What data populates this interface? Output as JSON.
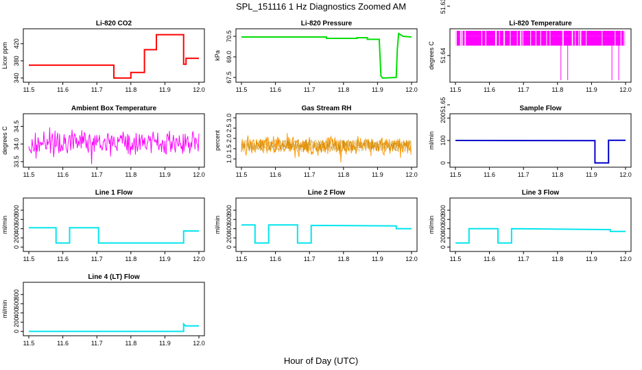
{
  "figure": {
    "title": "SPL_151116  1 Hz Diagnostics Zoomed AM",
    "xlabel": "Hour of Day (UTC)"
  },
  "chart_data": [
    {
      "id": "co2",
      "type": "line",
      "title": "Li-820 CO2",
      "ylabel": "Licor ppm",
      "color": "#ff0000",
      "xlim": [
        11.5,
        12.0
      ],
      "xticks": [
        "11.5",
        "11.6",
        "11.7",
        "11.8",
        "11.9",
        "12.0"
      ],
      "ylim": [
        335,
        450
      ],
      "yticks": [
        340,
        380,
        420
      ],
      "series": [
        {
          "x": 11.5,
          "y": 370
        },
        {
          "x": 11.75,
          "y": 370
        },
        {
          "x": 11.75,
          "y": 340
        },
        {
          "x": 11.8,
          "y": 340
        },
        {
          "x": 11.8,
          "y": 353
        },
        {
          "x": 11.84,
          "y": 353
        },
        {
          "x": 11.84,
          "y": 406
        },
        {
          "x": 11.875,
          "y": 406
        },
        {
          "x": 11.875,
          "y": 441
        },
        {
          "x": 11.955,
          "y": 441
        },
        {
          "x": 11.955,
          "y": 372
        },
        {
          "x": 11.962,
          "y": 372
        },
        {
          "x": 11.962,
          "y": 386
        },
        {
          "x": 12.0,
          "y": 386
        }
      ]
    },
    {
      "id": "pressure",
      "type": "line",
      "title": "Li-820 Pressure",
      "ylabel": "kPa",
      "color": "#00dd00",
      "xlim": [
        11.5,
        12.0
      ],
      "xticks": [
        "11.5",
        "11.6",
        "11.7",
        "11.8",
        "11.9",
        "12.0"
      ],
      "ylim": [
        67.3,
        70.9
      ],
      "yticks": [
        "67.5",
        "69.0",
        "70.5"
      ],
      "series": [
        {
          "x": 11.5,
          "y": 70.45
        },
        {
          "x": 11.75,
          "y": 70.45
        },
        {
          "x": 11.75,
          "y": 70.35
        },
        {
          "x": 11.84,
          "y": 70.35
        },
        {
          "x": 11.84,
          "y": 70.4
        },
        {
          "x": 11.87,
          "y": 70.4
        },
        {
          "x": 11.87,
          "y": 70.28
        },
        {
          "x": 11.905,
          "y": 70.28
        },
        {
          "x": 11.91,
          "y": 67.6
        },
        {
          "x": 11.915,
          "y": 67.45
        },
        {
          "x": 11.955,
          "y": 67.5
        },
        {
          "x": 11.958,
          "y": 69.5
        },
        {
          "x": 11.962,
          "y": 70.7
        },
        {
          "x": 11.975,
          "y": 70.5
        },
        {
          "x": 12.0,
          "y": 70.45
        }
      ]
    },
    {
      "id": "licor_temp",
      "type": "band",
      "title": "Li-820 Temperature",
      "ylabel": "degrees C",
      "color": "#ff00ff",
      "xlim": [
        11.5,
        12.0
      ],
      "xticks": [
        "11.5",
        "11.6",
        "11.7",
        "11.8",
        "11.9",
        "12.0"
      ],
      "ylim": [
        51.645,
        51.635
      ],
      "yticks": [
        "51.65",
        "51.64",
        "51.63"
      ],
      "band": {
        "x0": 11.5,
        "x1": 12.0,
        "ylow": 51.638,
        "yhigh": 51.636
      },
      "spikes": [
        11.81,
        11.83,
        11.96,
        11.98
      ]
    },
    {
      "id": "ambient_temp",
      "type": "noise",
      "title": "Ambient Box Temperature",
      "ylabel": "degrees C",
      "color": "#ff00ff",
      "xlim": [
        11.5,
        12.0
      ],
      "xticks": [
        "11.5",
        "11.6",
        "11.7",
        "11.8",
        "11.9",
        "12.0"
      ],
      "ylim": [
        33.4,
        34.8
      ],
      "yticks": [
        "33.5",
        "34.0",
        "34.5"
      ],
      "mean": 34.05,
      "amp": 0.32
    },
    {
      "id": "rh",
      "type": "noise",
      "title": "Gas Stream RH",
      "ylabel": "percent",
      "color": "#ff9900",
      "xlim": [
        11.5,
        12.0
      ],
      "xticks": [
        "11.5",
        "11.6",
        "11.7",
        "11.8",
        "11.9",
        "12.0"
      ],
      "ylim": [
        0.7,
        3.1
      ],
      "yticks": [
        "1.0",
        "1.5",
        "2.0",
        "2.5",
        "3.0"
      ],
      "mean": 1.65,
      "amp": 0.45
    },
    {
      "id": "sample_flow",
      "type": "line",
      "title": "Sample Flow",
      "ylabel": "ml/min",
      "color": "#0000cc",
      "xlim": [
        11.5,
        12.0
      ],
      "xticks": [
        "11.5",
        "11.6",
        "11.7",
        "11.8",
        "11.9",
        "12.0"
      ],
      "ylim": [
        -10,
        210
      ],
      "yticks": [
        0,
        100,
        200
      ],
      "series": [
        {
          "x": 11.5,
          "y": 100
        },
        {
          "x": 11.91,
          "y": 99
        },
        {
          "x": 11.91,
          "y": 0
        },
        {
          "x": 11.95,
          "y": 0
        },
        {
          "x": 11.95,
          "y": 101
        },
        {
          "x": 12.0,
          "y": 101
        }
      ]
    },
    {
      "id": "line1",
      "type": "line",
      "title": "Line 1 Flow",
      "ylabel": "ml/min",
      "color": "#00e5ee",
      "xlim": [
        11.5,
        12.0
      ],
      "xticks": [
        "11.5",
        "11.6",
        "11.7",
        "11.8",
        "11.9",
        "12.0"
      ],
      "ylim": [
        -50,
        1020
      ],
      "yticks": [
        0,
        200,
        400,
        600,
        800
      ],
      "series": [
        {
          "x": 11.5,
          "y": 420
        },
        {
          "x": 11.58,
          "y": 420
        },
        {
          "x": 11.58,
          "y": 90
        },
        {
          "x": 11.62,
          "y": 90
        },
        {
          "x": 11.62,
          "y": 420
        },
        {
          "x": 11.705,
          "y": 420
        },
        {
          "x": 11.705,
          "y": 90
        },
        {
          "x": 11.955,
          "y": 90
        },
        {
          "x": 11.955,
          "y": 350
        },
        {
          "x": 12.0,
          "y": 350
        }
      ]
    },
    {
      "id": "line2",
      "type": "line",
      "title": "Line 2 Flow",
      "ylabel": "ml/min",
      "color": "#00e5ee",
      "xlim": [
        11.5,
        12.0
      ],
      "xticks": [
        "11.5",
        "11.6",
        "11.7",
        "11.8",
        "11.9",
        "12.0"
      ],
      "ylim": [
        -50,
        1020
      ],
      "yticks": [
        0,
        200,
        400,
        600,
        800
      ],
      "series": [
        {
          "x": 11.5,
          "y": 480
        },
        {
          "x": 11.54,
          "y": 480
        },
        {
          "x": 11.54,
          "y": 90
        },
        {
          "x": 11.58,
          "y": 90
        },
        {
          "x": 11.58,
          "y": 480
        },
        {
          "x": 11.665,
          "y": 480
        },
        {
          "x": 11.665,
          "y": 90
        },
        {
          "x": 11.705,
          "y": 90
        },
        {
          "x": 11.705,
          "y": 470
        },
        {
          "x": 11.955,
          "y": 460
        },
        {
          "x": 11.955,
          "y": 400
        },
        {
          "x": 12.0,
          "y": 400
        }
      ]
    },
    {
      "id": "line3",
      "type": "line",
      "title": "Line 3 Flow",
      "ylabel": "ml/min",
      "color": "#00e5ee",
      "xlim": [
        11.5,
        12.0
      ],
      "xticks": [
        "11.5",
        "11.6",
        "11.7",
        "11.8",
        "11.9",
        "12.0"
      ],
      "ylim": [
        -50,
        1020
      ],
      "yticks": [
        0,
        200,
        400,
        600,
        800
      ],
      "series": [
        {
          "x": 11.5,
          "y": 90
        },
        {
          "x": 11.54,
          "y": 90
        },
        {
          "x": 11.54,
          "y": 400
        },
        {
          "x": 11.625,
          "y": 400
        },
        {
          "x": 11.625,
          "y": 90
        },
        {
          "x": 11.665,
          "y": 90
        },
        {
          "x": 11.665,
          "y": 400
        },
        {
          "x": 11.955,
          "y": 380
        },
        {
          "x": 11.955,
          "y": 340
        },
        {
          "x": 12.0,
          "y": 340
        }
      ]
    },
    {
      "id": "line4",
      "type": "line",
      "title": "Line 4 (LT) Flow",
      "ylabel": "ml/min",
      "color": "#00e5ee",
      "xlim": [
        11.5,
        12.0
      ],
      "xticks": [
        "11.5",
        "11.6",
        "11.7",
        "11.8",
        "11.9",
        "12.0"
      ],
      "ylim": [
        -50,
        1020
      ],
      "yticks": [
        0,
        200,
        400,
        600,
        800
      ],
      "series": [
        {
          "x": 11.5,
          "y": 0
        },
        {
          "x": 11.955,
          "y": 0
        },
        {
          "x": 11.955,
          "y": 160
        },
        {
          "x": 11.96,
          "y": 120
        },
        {
          "x": 12.0,
          "y": 120
        }
      ]
    }
  ]
}
